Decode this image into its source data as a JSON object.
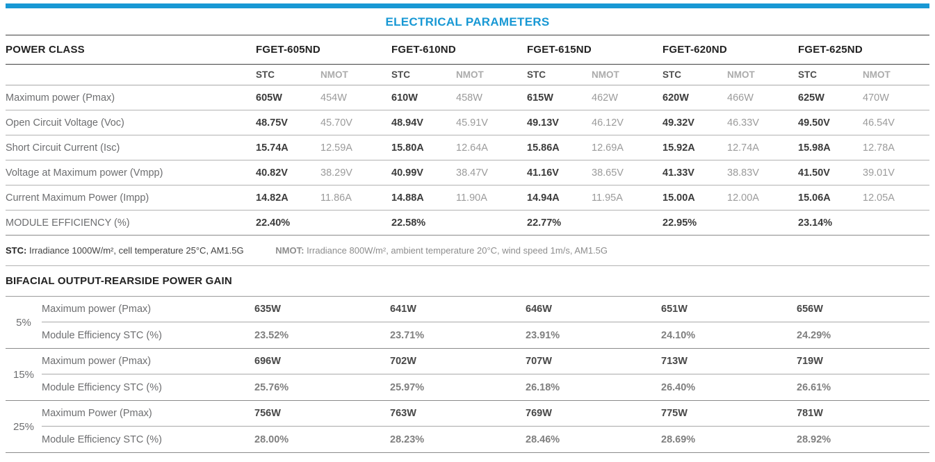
{
  "title": "ELECTRICAL PARAMETERS",
  "colors": {
    "accent_blue": "#1898D4"
  },
  "electrical_table": {
    "power_class_label": "POWER CLASS",
    "models": [
      "FGET-605ND",
      "FGET-610ND",
      "FGET-615ND",
      "FGET-620ND",
      "FGET-625ND"
    ],
    "condition_headers": {
      "stc": "STC",
      "nmot": "NMOT"
    },
    "rows": [
      {
        "label": "Maximum power (Pmax)",
        "stc": [
          "605W",
          "610W",
          "615W",
          "620W",
          "625W"
        ],
        "nmot": [
          "454W",
          "458W",
          "462W",
          "466W",
          "470W"
        ]
      },
      {
        "label": "Open Circuit Voltage (Voc)",
        "stc": [
          "48.75V",
          "48.94V",
          "49.13V",
          "49.32V",
          "49.50V"
        ],
        "nmot": [
          "45.70V",
          "45.91V",
          "46.12V",
          "46.33V",
          "46.54V"
        ]
      },
      {
        "label": "Short Circuit Current (Isc)",
        "stc": [
          "15.74A",
          "15.80A",
          "15.86A",
          "15.92A",
          "15.98A"
        ],
        "nmot": [
          "12.59A",
          "12.64A",
          "12.69A",
          "12.74A",
          "12.78A"
        ]
      },
      {
        "label": "Voltage at Maximum power (Vmpp)",
        "stc": [
          "40.82V",
          "40.99V",
          "41.16V",
          "41.33V",
          "41.50V"
        ],
        "nmot": [
          "38.29V",
          "38.47V",
          "38.65V",
          "38.83V",
          "39.01V"
        ]
      },
      {
        "label": "Current Maximum Power (Impp)",
        "stc": [
          "14.82A",
          "14.88A",
          "14.94A",
          "15.00A",
          "15.06A"
        ],
        "nmot": [
          "11.86A",
          "11.90A",
          "11.95A",
          "12.00A",
          "12.05A"
        ]
      },
      {
        "label": "MODULE EFFICIENCY (%)",
        "stc": [
          "22.40%",
          "22.58%",
          "22.77%",
          "22.95%",
          "23.14%"
        ]
      }
    ]
  },
  "footnote": {
    "stc_term": "STC:",
    "stc_text": "Irradiance 1000W/m², cell temperature 25°C, AM1.5G",
    "nmot_term": "NMOT:",
    "nmot_text": "Irradiance 800W/m², ambient temperature 20°C, wind speed 1m/s, AM1.5G"
  },
  "bifacial": {
    "heading": "BIFACIAL OUTPUT-REARSIDE POWER GAIN",
    "groups": [
      {
        "gain": "5%",
        "rows": [
          {
            "label": "Maximum power (Pmax)",
            "values": [
              "635W",
              "641W",
              "646W",
              "651W",
              "656W"
            ]
          },
          {
            "label": "Module Efficiency STC (%)",
            "values": [
              "23.52%",
              "23.71%",
              "23.91%",
              "24.10%",
              "24.29%"
            ]
          }
        ]
      },
      {
        "gain": "15%",
        "rows": [
          {
            "label": "Maximum power (Pmax)",
            "values": [
              "696W",
              "702W",
              "707W",
              "713W",
              "719W"
            ]
          },
          {
            "label": "Module Efficiency STC (%)",
            "values": [
              "25.76%",
              "25.97%",
              "26.18%",
              "26.40%",
              "26.61%"
            ]
          }
        ]
      },
      {
        "gain": "25%",
        "rows": [
          {
            "label": "Maximum Power (Pmax)",
            "values": [
              "756W",
              "763W",
              "769W",
              "775W",
              "781W"
            ]
          },
          {
            "label": "Module Efficiency STC (%)",
            "values": [
              "28.00%",
              "28.23%",
              "28.46%",
              "28.69%",
              "28.92%"
            ]
          }
        ]
      }
    ]
  }
}
